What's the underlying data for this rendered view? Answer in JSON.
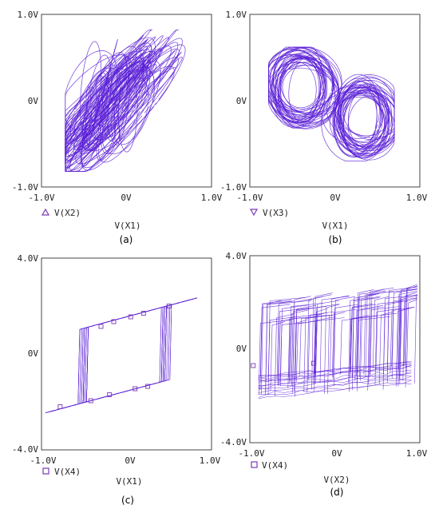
{
  "colors": {
    "trace": "#5b1fd6",
    "marker": "#7a3ab8",
    "frame": "#444444",
    "text": "#222222"
  },
  "chart_data": [
    {
      "type": "line",
      "panel_label": "(a)",
      "xlabel": "V(X1)",
      "legend": {
        "marker": "triangle-up",
        "label": "V(X2)",
        "placement": "bottom-left"
      },
      "xlim": [
        -1.0,
        1.0
      ],
      "ylim": [
        -1.0,
        1.0
      ],
      "xticks": [
        -1.0,
        0,
        1.0
      ],
      "xtick_labels": [
        "-1.0V",
        "0V",
        "1.0V"
      ],
      "yticks": [
        -1.0,
        0,
        1.0
      ],
      "ytick_labels": [
        "-1.0V",
        "0V",
        "1.0V"
      ],
      "grid": false,
      "series": [
        {
          "shape": "dense chaotic band, lower-left to upper-right",
          "x_range": [
            -0.72,
            0.8
          ],
          "y_range": [
            -0.82,
            0.82
          ]
        }
      ]
    },
    {
      "type": "line",
      "panel_label": "(b)",
      "xlabel": "V(X1)",
      "legend": {
        "marker": "triangle-down",
        "label": "V(X3)",
        "placement": "bottom-left"
      },
      "xlim": [
        -1.0,
        1.0
      ],
      "ylim": [
        -1.0,
        1.0
      ],
      "xticks": [
        -1.0,
        0,
        1.0
      ],
      "xtick_labels": [
        "-1.0V",
        "0V",
        "1.0V"
      ],
      "yticks": [
        -1.0,
        0,
        1.0
      ],
      "ytick_labels": [
        "-1.0V",
        "0V",
        "1.0V"
      ],
      "grid": false,
      "series": [
        {
          "shape": "double-scroll chaotic attractor, upper-left to lower-right",
          "x_range": [
            -0.78,
            0.7
          ],
          "y_range": [
            -0.7,
            0.62
          ]
        }
      ]
    },
    {
      "type": "line",
      "panel_label": "(c)",
      "xlabel": "V(X1)",
      "legend": {
        "marker": "square",
        "label": "V(X4)",
        "placement": "bottom-left"
      },
      "xlim": [
        -1.0,
        1.0
      ],
      "ylim": [
        -4.0,
        4.0
      ],
      "xticks": [
        -1.0,
        0,
        1.0
      ],
      "xtick_labels": [
        "-1.0V",
        "0V",
        "1.0V"
      ],
      "yticks": [
        -4.0,
        0,
        4.0
      ],
      "ytick_labels": [
        "-4.0V",
        "0V",
        "4.0V"
      ],
      "grid": false,
      "series": [
        {
          "shape": "hysteresis loop",
          "x_range": [
            -0.95,
            0.85
          ],
          "y_range": [
            -2.4,
            2.4
          ],
          "switch_x": [
            -0.5,
            0.5
          ]
        }
      ]
    },
    {
      "type": "line",
      "panel_label": "(d)",
      "xlabel": "V(X2)",
      "legend": {
        "marker": "square",
        "label": "V(X4)",
        "placement": "bottom-left"
      },
      "xlim": [
        -1.0,
        1.0
      ],
      "ylim": [
        -4.0,
        4.0
      ],
      "xticks": [
        -1.0,
        0,
        1.0
      ],
      "xtick_labels": [
        "-1.0V",
        "0V",
        "1.0V"
      ],
      "yticks": [
        -4.0,
        0,
        4.0
      ],
      "ytick_labels": [
        "-4.0V",
        "0V",
        "4.0V"
      ],
      "grid": false,
      "series": [
        {
          "shape": "dense switching band",
          "x_range": [
            -0.95,
            0.97
          ],
          "y_range": [
            -2.3,
            2.2
          ]
        }
      ]
    }
  ]
}
